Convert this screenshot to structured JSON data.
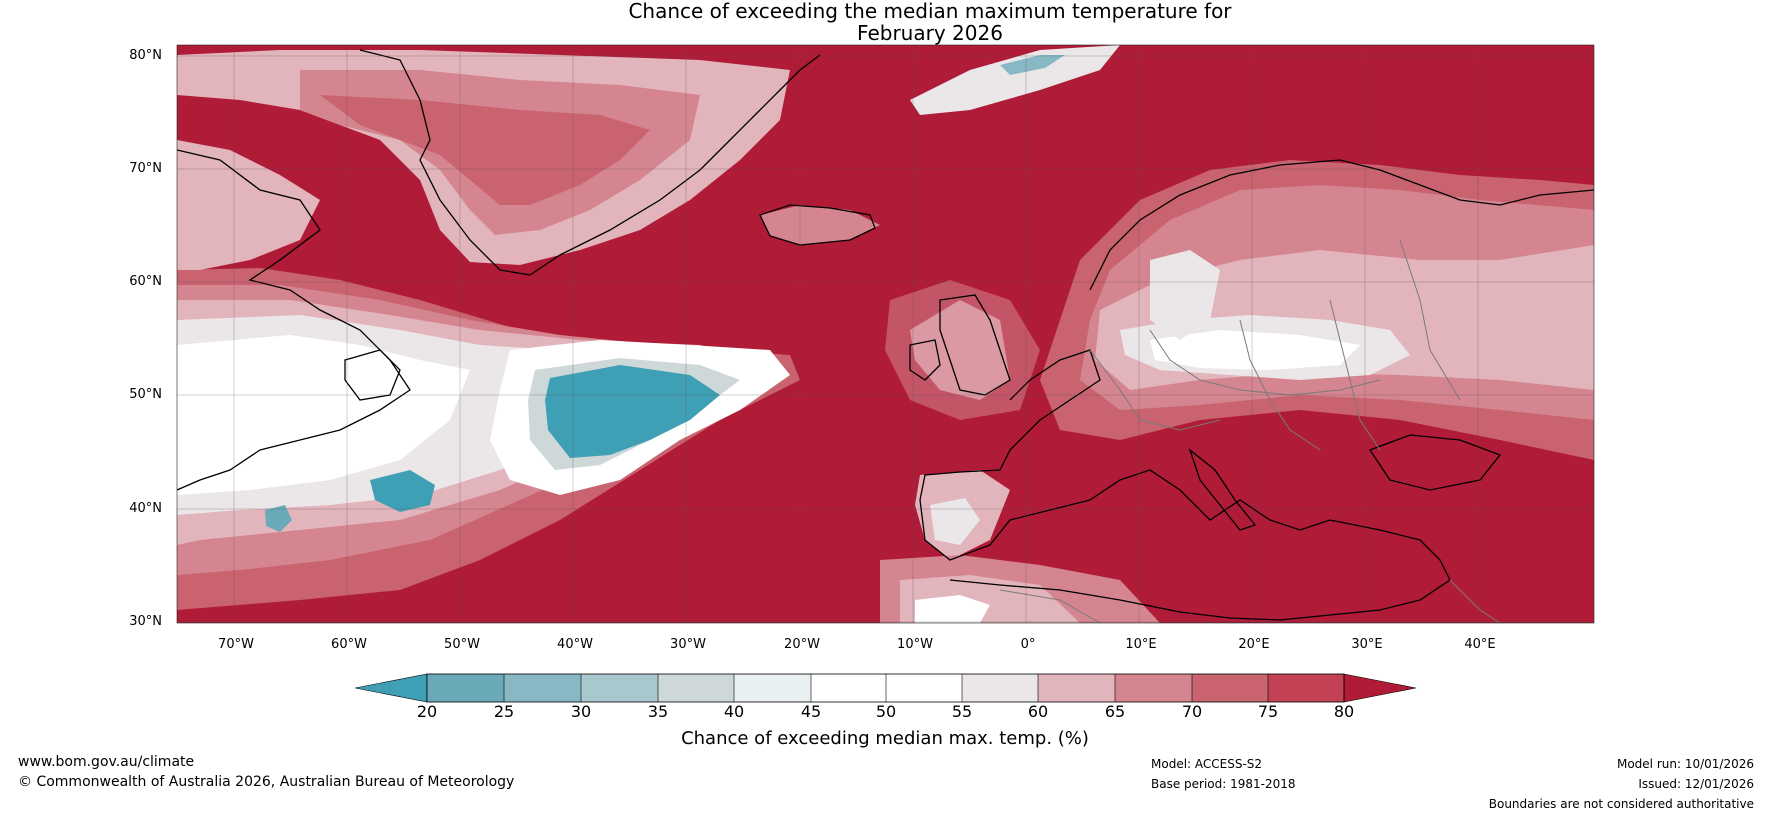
{
  "title_line1": "Chance of exceeding the median maximum temperature for",
  "title_line2": "February 2026",
  "lat_labels": [
    "80°N",
    "70°N",
    "60°N",
    "50°N",
    "40°N",
    "30°N"
  ],
  "lon_labels": [
    "70°W",
    "60°W",
    "50°W",
    "40°W",
    "30°W",
    "20°W",
    "10°W",
    "0°",
    "10°E",
    "20°E",
    "30°E",
    "40°E"
  ],
  "colorbar": {
    "ticks": [
      "20",
      "25",
      "30",
      "35",
      "40",
      "45",
      "50",
      "55",
      "60",
      "65",
      "70",
      "75",
      "80"
    ],
    "colors": {
      "below20": "#3fa0b5",
      "c20_25": "#6aaab8",
      "c25_30": "#88b8c4",
      "c30_35": "#a9c8cd",
      "c35_40": "#ced8d9",
      "c40_45": "#e8f0f2",
      "c45_50": "#ffffff",
      "c50_55": "#ffffff",
      "c55_60": "#ebe7e8",
      "c60_65": "#e2b4bb",
      "c65_70": "#d58590",
      "c70_75": "#c9636f",
      "c75_80": "#c34155",
      "above80": "#b01b37"
    },
    "label": "Chance of exceeding median max. temp. (%)"
  },
  "map_colors": {
    "land_line": "#000000",
    "border_line": "#7a7a7a",
    "grid": "#555555"
  },
  "footer": {
    "website": "www.bom.gov.au/climate",
    "copyright": "© Commonwealth of Australia 2026, Australian Bureau of Meteorology",
    "model": "Model: ACCESS-S2",
    "base_period": "Base period: 1981-2018",
    "model_run": "Model run: 10/01/2026",
    "issued": "Issued: 12/01/2026",
    "disclaimer": "Boundaries are not considered authoritative"
  }
}
